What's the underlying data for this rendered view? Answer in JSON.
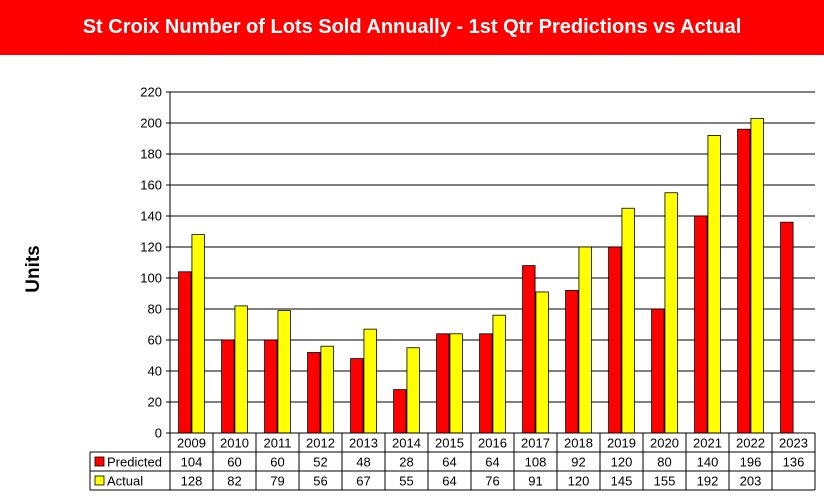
{
  "title": "St Croix Number of Lots Sold Annually - 1st Qtr Predictions vs Actual",
  "colors": {
    "title_bg": "#ff0000",
    "title_fg": "#ffffff",
    "predicted": "#ff0000",
    "actual": "#ffff00"
  },
  "chart_data": {
    "type": "bar",
    "title": "St Croix Number of Lots Sold Annually - 1st Qtr Predictions vs Actual",
    "xlabel": "",
    "ylabel": "Units",
    "ylim": [
      0,
      220
    ],
    "yticks": [
      0,
      20,
      40,
      60,
      80,
      100,
      120,
      140,
      160,
      180,
      200,
      220
    ],
    "grid": true,
    "legend": "data-table",
    "categories": [
      "2009",
      "2010",
      "2011",
      "2012",
      "2013",
      "2014",
      "2015",
      "2016",
      "2017",
      "2018",
      "2019",
      "2020",
      "2021",
      "2022",
      "2023"
    ],
    "series": [
      {
        "name": "Predicted",
        "color": "#ff0000",
        "values": [
          104,
          60,
          60,
          52,
          48,
          28,
          64,
          64,
          108,
          92,
          120,
          80,
          140,
          196,
          136
        ]
      },
      {
        "name": "Actual",
        "color": "#ffff00",
        "values": [
          128,
          82,
          79,
          56,
          67,
          55,
          64,
          76,
          91,
          120,
          145,
          155,
          192,
          203,
          null
        ]
      }
    ]
  }
}
